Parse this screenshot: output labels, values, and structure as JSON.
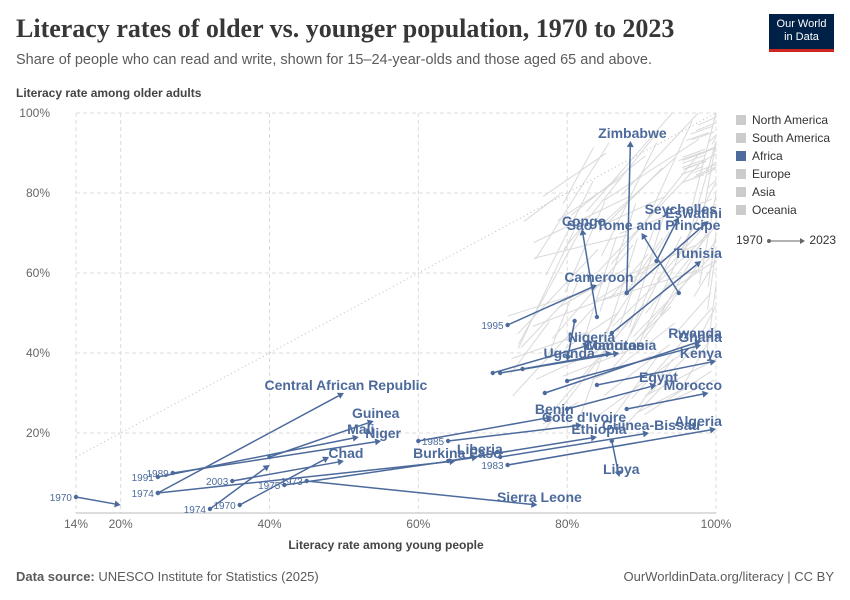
{
  "header": {
    "title": "Literacy rates of older vs. younger population, 1970 to 2023",
    "subtitle": "Share of people who can read and write, shown for 15–24-year-olds and those aged 65 and above.",
    "logo_line1": "Our World",
    "logo_line2": "in Data"
  },
  "footer": {
    "source_label": "Data source:",
    "source_text": "UNESCO Institute for Statistics (2025)",
    "right_text": "OurWorldinData.org/literacy | CC BY"
  },
  "legend": {
    "items": [
      {
        "label": "North America",
        "color": "#cccccc"
      },
      {
        "label": "South America",
        "color": "#cccccc"
      },
      {
        "label": "Africa",
        "color": "#4c6a9c"
      },
      {
        "label": "Europe",
        "color": "#cccccc"
      },
      {
        "label": "Asia",
        "color": "#cccccc"
      },
      {
        "label": "Oceania",
        "color": "#cccccc"
      }
    ],
    "time_start": "1970",
    "time_end": "2023"
  },
  "chart_data": {
    "type": "scatter",
    "title": "Literacy rates of older vs. younger population, 1970 to 2023",
    "xlabel": "Literacy rate among young people",
    "ylabel": "Literacy rate among older adults",
    "xlim": [
      14,
      100
    ],
    "ylim": [
      0,
      100
    ],
    "x_ticks": [
      "14%",
      "20%",
      "40%",
      "60%",
      "80%",
      "100%"
    ],
    "x_tick_values": [
      14,
      20,
      40,
      60,
      80,
      100
    ],
    "y_ticks": [
      "20%",
      "40%",
      "60%",
      "80%",
      "100%"
    ],
    "y_tick_values": [
      20,
      40,
      60,
      80,
      100
    ],
    "grid": true,
    "legend_position": "right",
    "highlight_color": "#4c6a9c",
    "background_color": "#d9d9d9",
    "series": [
      {
        "name": "Zimbabwe",
        "x": [
          88,
          88.5
        ],
        "y": [
          55,
          93
        ],
        "year_label": ""
      },
      {
        "name": "Seychelles",
        "x": [
          92,
          95
        ],
        "y": [
          63,
          74
        ],
        "year_label": ""
      },
      {
        "name": "Congo",
        "x": [
          84,
          82
        ],
        "y": [
          49,
          71
        ],
        "year_label": ""
      },
      {
        "name": "Sao Tome and Principe",
        "x": [
          95,
          90
        ],
        "y": [
          55,
          70
        ],
        "year_label": ""
      },
      {
        "name": "Eswatini",
        "x": [
          88,
          99
        ],
        "y": [
          55,
          73
        ],
        "year_label": ""
      },
      {
        "name": "Tunisia",
        "x": [
          86,
          98
        ],
        "y": [
          45,
          63
        ],
        "year_label": ""
      },
      {
        "name": "Cameroon",
        "x": [
          72,
          84
        ],
        "y": [
          47,
          57
        ],
        "year_label": "1995"
      },
      {
        "name": "Uganda",
        "x": [
          81,
          80
        ],
        "y": [
          48,
          38
        ],
        "year_label": ""
      },
      {
        "name": "Nigeria",
        "x": [
          70,
          83
        ],
        "y": [
          35,
          42
        ],
        "year_label": ""
      },
      {
        "name": "Mauritania",
        "x": [
          71,
          87
        ],
        "y": [
          35,
          40
        ],
        "year_label": ""
      },
      {
        "name": "Comoros",
        "x": [
          74,
          86
        ],
        "y": [
          36,
          40
        ],
        "year_label": ""
      },
      {
        "name": "Rwanda",
        "x": [
          77,
          98
        ],
        "y": [
          30,
          43
        ],
        "year_label": ""
      },
      {
        "name": "Ghana",
        "x": [
          80,
          98
        ],
        "y": [
          33,
          42
        ],
        "year_label": ""
      },
      {
        "name": "Kenya",
        "x": [
          84,
          100
        ],
        "y": [
          32,
          38
        ],
        "year_label": ""
      },
      {
        "name": "Central African Republic",
        "x": [
          25,
          50
        ],
        "y": [
          5,
          30
        ],
        "year_label": ""
      },
      {
        "name": "Egypt",
        "x": [
          80,
          92
        ],
        "y": [
          26,
          32
        ],
        "year_label": ""
      },
      {
        "name": "Morocco",
        "x": [
          88,
          99
        ],
        "y": [
          26,
          30
        ],
        "year_label": ""
      },
      {
        "name": "Benin",
        "x": [
          60,
          78
        ],
        "y": [
          18,
          24
        ],
        "year_label": ""
      },
      {
        "name": "Cote d'Ivoire",
        "x": [
          64,
          82
        ],
        "y": [
          18,
          22
        ],
        "year_label": "1985"
      },
      {
        "name": "Guinea-Bissau",
        "x": [
          71,
          91
        ],
        "y": [
          14,
          20
        ],
        "year_label": ""
      },
      {
        "name": "Guinea",
        "x": [
          40,
          54
        ],
        "y": [
          14,
          23
        ],
        "year_label": ""
      },
      {
        "name": "Mali",
        "x": [
          25,
          52
        ],
        "y": [
          9,
          19
        ],
        "year_label": "1991"
      },
      {
        "name": "Niger",
        "x": [
          27,
          55
        ],
        "y": [
          10,
          18
        ],
        "year_label": "1989"
      },
      {
        "name": "Ethiopia",
        "x": [
          64,
          84
        ],
        "y": [
          13,
          19
        ],
        "year_label": ""
      },
      {
        "name": "Algeria",
        "x": [
          72,
          100
        ],
        "y": [
          12,
          21
        ],
        "year_label": "1983"
      },
      {
        "name": "Chad",
        "x": [
          35,
          50
        ],
        "y": [
          8,
          13
        ],
        "year_label": "2003"
      },
      {
        "name": "Burkina Faso",
        "x": [
          25,
          65
        ],
        "y": [
          5,
          13
        ],
        "year_label": "1974"
      },
      {
        "name": "Liberia",
        "x": [
          42,
          68
        ],
        "y": [
          7,
          14
        ],
        "year_label": "1975"
      },
      {
        "name": "Sierra Leone",
        "x": [
          45,
          76
        ],
        "y": [
          8,
          2
        ],
        "year_label": "1973"
      },
      {
        "name": "Libya",
        "x": [
          86,
          87
        ],
        "y": [
          18,
          9
        ],
        "year_label": ""
      },
      {
        "name": "",
        "x": [
          14,
          20
        ],
        "y": [
          4,
          2
        ],
        "year_label": "1970"
      },
      {
        "name": "",
        "x": [
          32,
          40
        ],
        "y": [
          1,
          12
        ],
        "year_label": "1974"
      },
      {
        "name": "",
        "x": [
          36,
          48
        ],
        "y": [
          2,
          14
        ],
        "year_label": "1970"
      }
    ]
  }
}
